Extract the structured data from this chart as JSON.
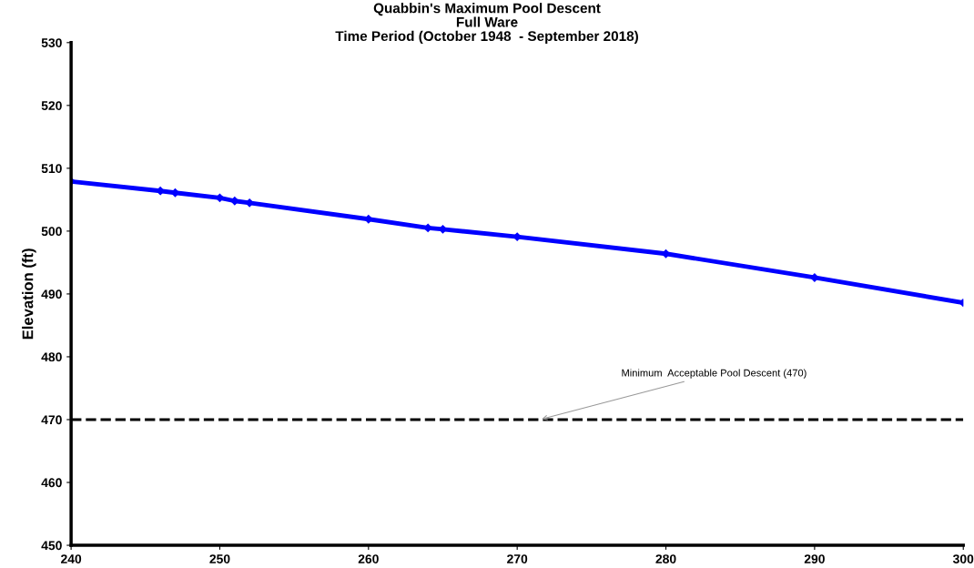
{
  "chart_data": {
    "type": "line",
    "title": "Quabbin's Maximum Pool Descent\nFull Ware\nTime Period (October 1948  - September 2018)",
    "ylabel": "Elevation (ft)",
    "series": [
      {
        "color": "#0000ff",
        "x": [
          240,
          246,
          247,
          250,
          251,
          252,
          260,
          264,
          265,
          270,
          280,
          290,
          300
        ],
        "values": [
          507.9,
          506.4,
          506.1,
          505.3,
          504.8,
          504.5,
          501.9,
          500.5,
          500.3,
          499.1,
          496.4,
          492.6,
          488.6
        ]
      }
    ],
    "xlim": [
      240,
      300
    ],
    "xticks": [
      240,
      250,
      260,
      270,
      280,
      290,
      300
    ],
    "ylim": [
      450,
      530
    ],
    "yticks": [
      450,
      460,
      470,
      480,
      490,
      500,
      510,
      520,
      530
    ],
    "ref_lines": [
      {
        "axis": "y",
        "value": 470,
        "color": "#000000",
        "line_style": "dashed"
      }
    ],
    "annotations": [
      {
        "text": "Minimum  Acceptable Pool Descent (470)",
        "x": 271.5,
        "y": 470
      }
    ],
    "marker": "diamond",
    "line_style": "solid",
    "grid": false,
    "legend": false
  }
}
